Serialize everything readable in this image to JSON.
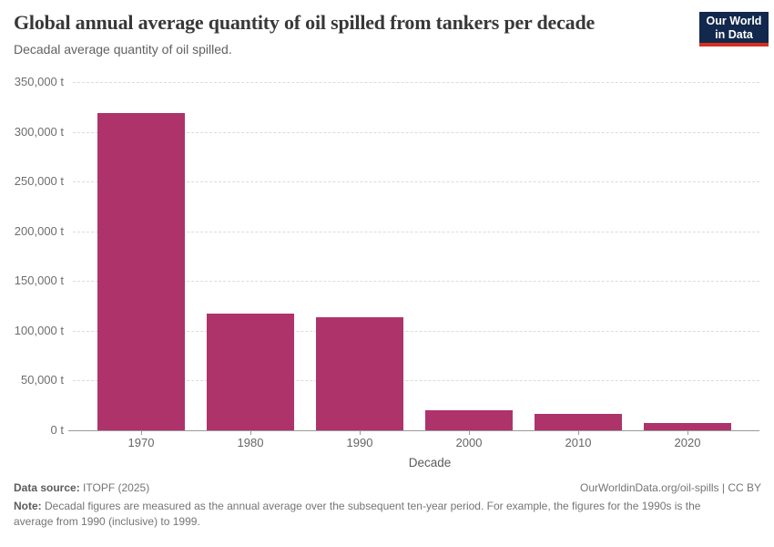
{
  "header": {
    "logo": {
      "line1": "Our World",
      "line2": "in Data",
      "bg": "#12284c",
      "accent": "#d92d20"
    }
  },
  "chart_data": {
    "type": "bar",
    "title": "Global annual average quantity of oil spilled from tankers per decade",
    "subtitle": "Decadal average quantity of oil spilled.",
    "categories": [
      "1970",
      "1980",
      "1990",
      "2000",
      "2010",
      "2020"
    ],
    "values": [
      319000,
      117700,
      113400,
      19800,
      16400,
      7000
    ],
    "unit": "t",
    "xlabel": "Decade",
    "ylabel": "",
    "ylim": [
      0,
      350000
    ],
    "yticks": [
      {
        "value": 0,
        "label": "0 t"
      },
      {
        "value": 50000,
        "label": "50,000 t"
      },
      {
        "value": 100000,
        "label": "100,000 t"
      },
      {
        "value": 150000,
        "label": "150,000 t"
      },
      {
        "value": 200000,
        "label": "200,000 t"
      },
      {
        "value": 250000,
        "label": "250,000 t"
      },
      {
        "value": 300000,
        "label": "300,000 t"
      },
      {
        "value": 350000,
        "label": "350,000 t"
      }
    ],
    "bar_color": "#ae336b",
    "grid": true,
    "legend": "none"
  },
  "footer": {
    "datasource_label": "Data source:",
    "datasource_value": "ITOPF (2025)",
    "link": "OurWorldinData.org/oil-spills | CC BY",
    "note_label": "Note:",
    "note_text": "Decadal figures are measured as the annual average over the subsequent ten-year period. For example, the figures for the 1990s is the average from 1990 (inclusive) to 1999."
  }
}
